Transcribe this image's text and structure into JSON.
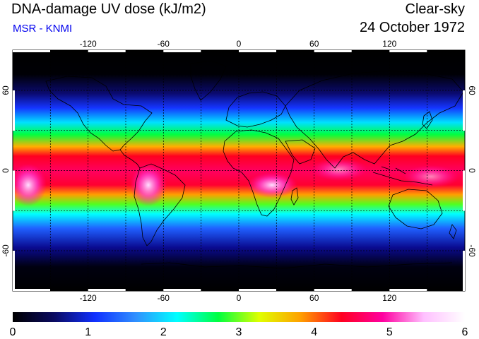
{
  "header": {
    "title": "DNA-damage UV dose (kJ/m2)",
    "source": "MSR - KNMI",
    "condition": "Clear-sky",
    "date": "24 October 1972"
  },
  "map": {
    "lon_labels": [
      "-120",
      "-60",
      "0",
      "60",
      "120"
    ],
    "lat_labels": [
      "60",
      "0",
      "-60"
    ],
    "lon_range": [
      -180,
      180
    ],
    "lat_range": [
      -90,
      90
    ],
    "gridlines": "dashed every 30 degrees",
    "projection": "equirectangular"
  },
  "colorbar": {
    "labels": [
      "0",
      "1",
      "2",
      "3",
      "4",
      "5",
      "6"
    ],
    "range": [
      0,
      6
    ],
    "stops": [
      "#000000",
      "#0a0a60",
      "#1030ff",
      "#3090ff",
      "#00ffff",
      "#00ff40",
      "#e0ff00",
      "#ffa000",
      "#ff0020",
      "#ff00a0",
      "#ffc0ff",
      "#ffffff"
    ]
  }
}
